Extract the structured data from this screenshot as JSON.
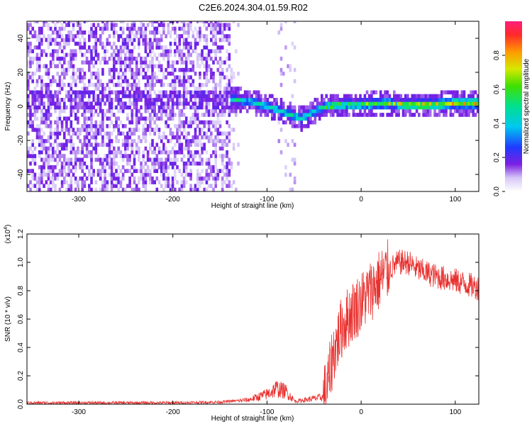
{
  "title": "C2E6.2024.304.01.59.R02",
  "colors": {
    "snr_line": "#e8302e",
    "spectrogram_low": "#d9c6f5",
    "spectrogram_mid": "#6a1be0",
    "spectrogram_high": "#ff1f3b"
  },
  "chart_data": [
    {
      "type": "heatmap",
      "title": "C2E6.2024.304.01.59.R02",
      "xlabel": "Height of straight line (km)",
      "ylabel": "Frequency (Hz)",
      "xlim": [
        -355,
        125
      ],
      "ylim": [
        -50,
        50
      ],
      "x_ticks": [
        -300,
        -200,
        -100,
        0,
        100
      ],
      "y_ticks": [
        -40,
        -20,
        0,
        20,
        40
      ],
      "colorbar": {
        "label": "Normalized spectral amplitude",
        "range": [
          0,
          1
        ],
        "ticks": [
          0.0,
          0.2,
          0.4,
          0.6,
          0.8
        ]
      },
      "ridge": {
        "description_x": [
          -140,
          -120,
          -100,
          -80,
          -65,
          -50,
          -40,
          -20,
          0,
          20,
          40,
          60,
          80,
          100,
          125
        ],
        "frequency": [
          3,
          2,
          -1,
          -5,
          -8,
          -4,
          -1,
          0,
          0,
          1,
          0,
          0,
          0,
          1,
          1
        ]
      },
      "grid": false
    },
    {
      "type": "line",
      "xlabel": "Height of straight line (km)",
      "ylabel": "SNR (10 * v/v)",
      "y_multiplier": "(x10^4)",
      "xlim": [
        -355,
        125
      ],
      "ylim": [
        0,
        1.2
      ],
      "x_ticks": [
        -300,
        -200,
        -100,
        0,
        100
      ],
      "y_ticks": [
        0.0,
        0.2,
        0.4,
        0.6,
        0.8,
        1.0,
        1.2
      ],
      "series": [
        {
          "x": [
            -355,
            -300,
            -200,
            -150,
            -120,
            -100,
            -90,
            -80,
            -70,
            -60,
            -50,
            -40,
            -35,
            -30,
            -25,
            -20,
            -15,
            -10,
            0,
            10,
            20,
            30,
            40,
            50,
            60,
            80,
            100,
            110,
            125
          ],
          "values": [
            0.01,
            0.01,
            0.01,
            0.015,
            0.03,
            0.07,
            0.11,
            0.09,
            0.02,
            0.03,
            0.04,
            0.05,
            0.15,
            0.35,
            0.45,
            0.55,
            0.6,
            0.65,
            0.72,
            0.8,
            0.88,
            0.95,
            1.0,
            1.0,
            0.95,
            0.9,
            0.87,
            0.85,
            0.82
          ]
        }
      ],
      "grid": false
    }
  ]
}
